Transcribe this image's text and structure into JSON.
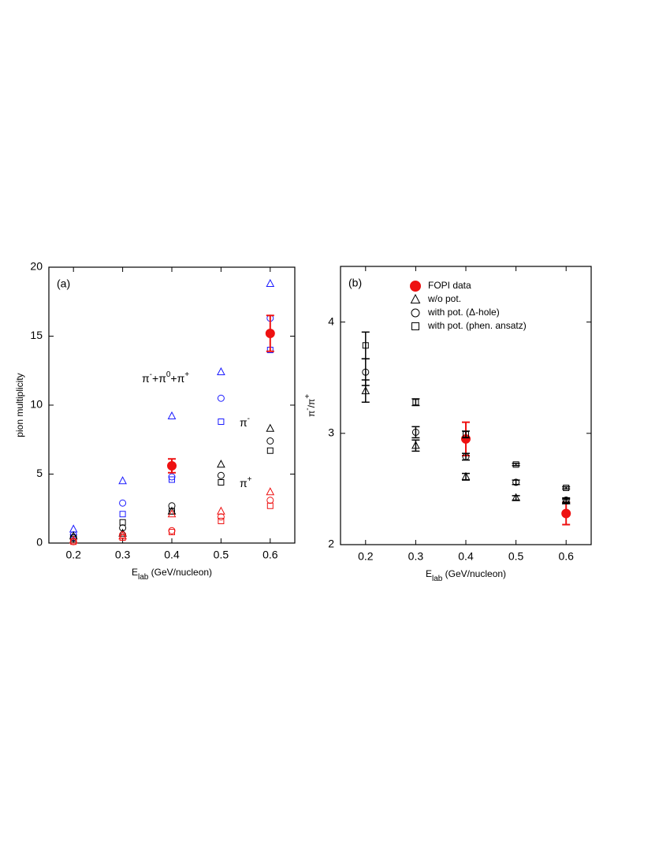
{
  "chart_data": [
    {
      "type": "scatter",
      "panel_label": "(a)",
      "x_label": [
        {
          "text": "E"
        },
        {
          "text": "lab",
          "sub": true
        },
        {
          "text": " (GeV/nucleon)"
        }
      ],
      "y_label": [
        {
          "text": "pion multiplicity"
        }
      ],
      "xlim": [
        0.15,
        0.65
      ],
      "ylim": [
        0,
        20
      ],
      "xticks": [
        0.2,
        0.3,
        0.4,
        0.5,
        0.6
      ],
      "yticks": [
        0,
        5,
        10,
        15,
        20
      ],
      "x": [
        0.2,
        0.3,
        0.4,
        0.5,
        0.6
      ],
      "annotations": [
        [
          {
            "text": "π"
          },
          {
            "text": "-",
            "sup": true
          },
          {
            "text": "+π"
          },
          {
            "text": "0",
            "sup": true
          },
          {
            "text": "+π"
          },
          {
            "text": "+",
            "sup": true
          }
        ],
        [
          {
            "text": "π"
          },
          {
            "text": "-",
            "sup": true
          }
        ],
        [
          {
            "text": "π"
          },
          {
            "text": "+",
            "sup": true
          }
        ]
      ],
      "series": [
        {
          "marker": "triangle",
          "color": "#1a1aff",
          "values": [
            1.0,
            4.5,
            9.2,
            12.4,
            18.8
          ]
        },
        {
          "marker": "circle",
          "color": "#1a1aff",
          "values": [
            0.6,
            2.9,
            4.8,
            10.5,
            16.3
          ]
        },
        {
          "marker": "square",
          "color": "#1a1aff",
          "values": [
            0.4,
            2.1,
            4.6,
            8.8,
            14.0
          ]
        },
        {
          "marker": "triangle",
          "color": "#000000",
          "values": [
            0.5,
            0.7,
            2.3,
            5.7,
            8.3
          ]
        },
        {
          "marker": "circle",
          "color": "#000000",
          "values": [
            0.4,
            1.1,
            2.7,
            4.9,
            7.4
          ]
        },
        {
          "marker": "square",
          "color": "#000000",
          "values": [
            0.3,
            1.5,
            2.3,
            4.4,
            6.7
          ]
        },
        {
          "marker": "triangle",
          "color": "#ee1111",
          "values": [
            0.2,
            0.5,
            2.1,
            2.3,
            3.7
          ]
        },
        {
          "marker": "circle",
          "color": "#ee1111",
          "values": [
            0.1,
            0.6,
            0.9,
            1.9,
            3.1
          ]
        },
        {
          "marker": "square",
          "color": "#ee1111",
          "values": [
            0.1,
            0.4,
            0.8,
            1.6,
            2.7
          ]
        },
        {
          "marker": "filled-circle",
          "color": "#ee1111",
          "values": [
            null,
            null,
            5.6,
            null,
            15.2
          ],
          "errors": [
            null,
            null,
            0.5,
            null,
            1.3
          ]
        }
      ]
    },
    {
      "type": "scatter",
      "panel_label": "(b)",
      "x_label": [
        {
          "text": "E"
        },
        {
          "text": "lab",
          "sub": true
        },
        {
          "text": " (GeV/nucleon)"
        }
      ],
      "y_label": [
        {
          "text": "π"
        },
        {
          "text": "-",
          "sup": true
        },
        {
          "text": "/π"
        },
        {
          "text": "+",
          "sup": true
        }
      ],
      "xlim": [
        0.15,
        0.65
      ],
      "ylim": [
        2,
        4.5
      ],
      "xticks": [
        0.2,
        0.3,
        0.4,
        0.5,
        0.6
      ],
      "yticks": [
        2,
        3,
        4
      ],
      "x": [
        0.2,
        0.3,
        0.4,
        0.5,
        0.6
      ],
      "series": [
        {
          "name": "FOPI data",
          "marker": "filled-circle",
          "color": "#ee1111",
          "values": [
            null,
            null,
            2.95,
            null,
            2.28
          ],
          "errors": [
            null,
            null,
            0.15,
            null,
            0.1
          ]
        },
        {
          "name": "w/o  pot.",
          "marker": "triangle",
          "color": "#000000",
          "values": [
            3.38,
            2.89,
            2.61,
            2.42,
            2.39
          ],
          "errors": [
            0.1,
            0.05,
            0.03,
            0.02,
            0.02
          ]
        },
        {
          "name": "with pot. (Δ-hole)",
          "marker": "circle",
          "color": "#000000",
          "values": [
            3.55,
            3.01,
            2.79,
            2.56,
            2.4
          ],
          "errors": [
            0.12,
            0.05,
            0.03,
            0.02,
            0.02
          ]
        },
        {
          "name": "with pot. (phen. ansatz)",
          "marker": "square",
          "color": "#000000",
          "values": [
            3.79,
            3.28,
            2.99,
            2.72,
            2.51
          ],
          "errors": [
            0.12,
            0.03,
            0.03,
            0.01,
            0.01
          ]
        }
      ]
    }
  ]
}
